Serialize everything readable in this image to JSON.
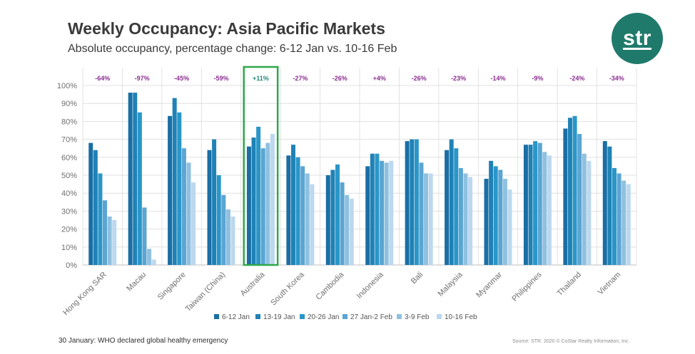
{
  "title": "Weekly Occupancy: Asia Pacific Markets",
  "subtitle": "Absolute occupancy, percentage change: 6-12 Jan vs. 10-16 Feb",
  "logo": {
    "text": "str",
    "color": "#1f7a6b"
  },
  "footer_note": "30 January: WHO declared global healthy emergency",
  "source": "Source: STR. 2020 © CoStar Realty Information, Inc.",
  "chart_data": {
    "type": "bar",
    "categories": [
      "Hong Kong SAR",
      "Macau",
      "Singapore",
      "Taiwan (China)",
      "Australia",
      "South Korea",
      "Cambodia",
      "Indonesia",
      "Bali",
      "Malaysia",
      "Myanmar",
      "Philippines",
      "Thailand",
      "Vietnam"
    ],
    "yticks": [
      "0%",
      "10%",
      "20%",
      "30%",
      "40%",
      "50%",
      "60%",
      "70%",
      "80%",
      "90%",
      "100%"
    ],
    "ylim": [
      0,
      100
    ],
    "grid": true,
    "legend_position": "bottom",
    "highlight_category": "Australia",
    "highlight_color": "#2ea84a",
    "change_labels": [
      "-64%",
      "-97%",
      "-45%",
      "-59%",
      "+11%",
      "-27%",
      "-26%",
      "+4%",
      "-26%",
      "-23%",
      "-14%",
      "-9%",
      "-24%",
      "-34%"
    ],
    "change_label_colors": {
      "default": "#8a2d8f",
      "highlight": "#1e8a7a"
    },
    "series": [
      {
        "name": "6-12 Jan",
        "color": "#1a6ea4",
        "values": [
          68,
          96,
          83,
          64,
          66,
          61,
          50,
          55,
          69,
          64,
          48,
          67,
          76,
          69
        ]
      },
      {
        "name": "13-19 Jan",
        "color": "#1f82b6",
        "values": [
          64,
          96,
          93,
          70,
          71,
          67,
          53,
          62,
          70,
          70,
          58,
          67,
          82,
          66
        ]
      },
      {
        "name": "20-26 Jan",
        "color": "#2a96c8",
        "values": [
          51,
          85,
          85,
          50,
          77,
          60,
          56,
          62,
          70,
          65,
          55,
          69,
          83,
          54
        ]
      },
      {
        "name": "27 Jan-2 Feb",
        "color": "#5aa5d2",
        "values": [
          36,
          32,
          65,
          39,
          65,
          55,
          46,
          58,
          57,
          54,
          53,
          68,
          73,
          51
        ]
      },
      {
        "name": "3-9 Feb",
        "color": "#8fc0e0",
        "values": [
          27,
          9,
          57,
          31,
          68,
          51,
          39,
          57,
          51,
          51,
          48,
          63,
          62,
          47
        ]
      },
      {
        "name": "10-16 Feb",
        "color": "#bcd8ee",
        "values": [
          25,
          3,
          46,
          27,
          73,
          45,
          37,
          58,
          51,
          49,
          42,
          61,
          58,
          45
        ]
      }
    ]
  }
}
